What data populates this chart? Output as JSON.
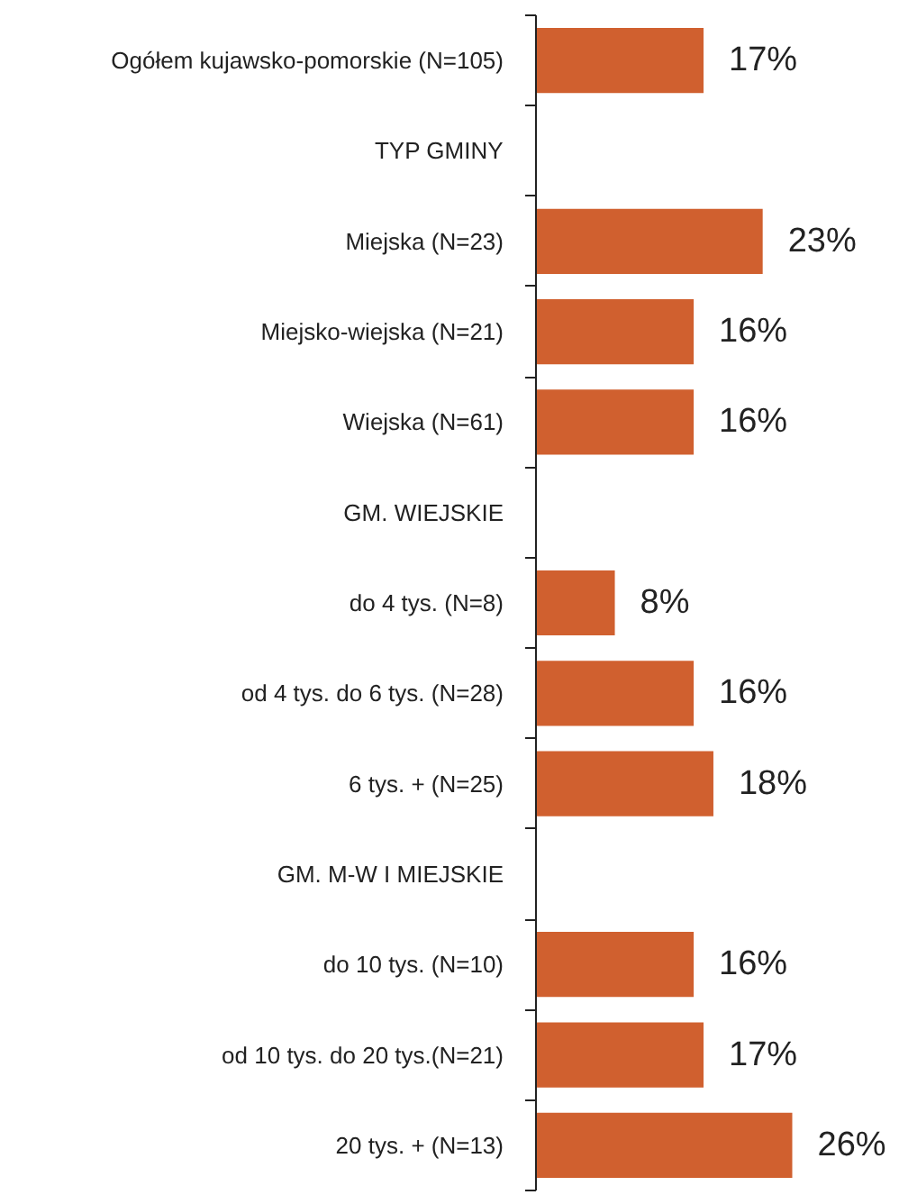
{
  "chart_data": {
    "type": "bar",
    "orientation": "horizontal",
    "data_labels": true,
    "tick_labels": "y",
    "categories": [
      "Ogółem kujawsko-pomorskie (N=105)",
      "TYP GMINY",
      "Miejska (N=23)",
      "Miejsko-wiejska (N=21)",
      "Wiejska (N=61)",
      "GM. WIEJSKIE",
      "do 4 tys. (N=8)",
      "od 4 tys. do 6 tys. (N=28)",
      "6 tys. + (N=25)",
      "GM. M-W I MIEJSKIE",
      "do 10 tys. (N=10)",
      "od 10 tys. do 20 tys.(N=21)",
      "20 tys. + (N=13)"
    ],
    "values": [
      17,
      null,
      23,
      16,
      16,
      null,
      8,
      16,
      18,
      null,
      16,
      17,
      26
    ],
    "value_labels": [
      "17%",
      null,
      "23%",
      "16%",
      "16%",
      null,
      "8%",
      "16%",
      "18%",
      null,
      "16%",
      "17%",
      "26%"
    ],
    "color": "#d0602f"
  }
}
